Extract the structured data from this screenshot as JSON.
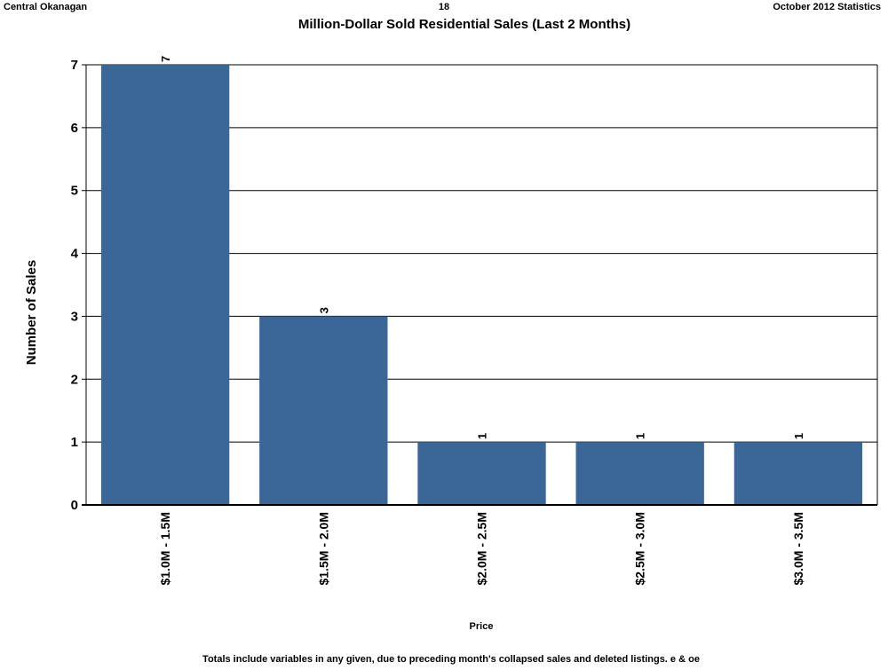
{
  "header": {
    "left": "Central Okanagan",
    "center": "18",
    "right": "October 2012 Statistics"
  },
  "footer": "Totals include variables in any given, due to preceding month's collapsed sales and deleted listings. e & oe",
  "colors": {
    "bar": "#3b6698",
    "grid": "#000000",
    "axis": "#000000"
  },
  "chart_data": {
    "type": "bar",
    "title": "Million-Dollar Sold Residential Sales (Last 2 Months)",
    "xlabel": "Price",
    "ylabel": "Number of Sales",
    "categories": [
      "$1.0M - 1.5M",
      "$1.5M - 2.0M",
      "$2.0M - 2.5M",
      "$2.5M - 3.0M",
      "$3.0M - 3.5M"
    ],
    "values": [
      7,
      3,
      1,
      1,
      1
    ],
    "ylim": [
      0,
      7
    ],
    "yticks": [
      0,
      1,
      2,
      3,
      4,
      5,
      6,
      7
    ],
    "grid": true,
    "data_labels": true
  }
}
